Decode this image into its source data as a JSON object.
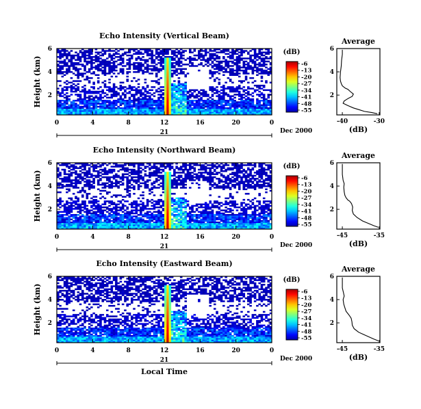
{
  "chart_data": [
    {
      "type": "heatmap",
      "title": "Echo Intensity (Vertical Beam)",
      "ylabel": "Height (km)",
      "x_ticks": [
        "0",
        "4",
        "8",
        "12",
        "16",
        "20",
        "0"
      ],
      "y_ticks": [
        "6",
        "4",
        "2"
      ],
      "date_day": "21",
      "date_suffix": "Dec 2000",
      "colorbar": {
        "unit": "(dB)",
        "labels": [
          "-6",
          "-13",
          "-20",
          "-27",
          "-34",
          "-41",
          "-48",
          "-55"
        ]
      },
      "profile": {
        "title": "Average",
        "xlabel": "(dB)",
        "x_ticks": [
          "-40",
          "-30"
        ],
        "y_ticks": [
          "6",
          "4",
          "2"
        ],
        "points": [
          [
            -40,
            5.9
          ],
          [
            -40,
            5.5
          ],
          [
            -40.2,
            5.0
          ],
          [
            -40.3,
            4.5
          ],
          [
            -40.5,
            4.0
          ],
          [
            -40.6,
            3.5
          ],
          [
            -40.5,
            3.2
          ],
          [
            -40.3,
            3.0
          ],
          [
            -40.0,
            2.8
          ],
          [
            -39.2,
            2.6
          ],
          [
            -38.5,
            2.5
          ],
          [
            -37.8,
            2.3
          ],
          [
            -37.0,
            2.1
          ],
          [
            -37.3,
            1.9
          ],
          [
            -38.5,
            1.7
          ],
          [
            -39.5,
            1.5
          ],
          [
            -39.8,
            1.3
          ],
          [
            -38.5,
            1.1
          ],
          [
            -37.0,
            0.9
          ],
          [
            -35.5,
            0.75
          ],
          [
            -34.0,
            0.6
          ],
          [
            -32.0,
            0.5
          ],
          [
            -30.5,
            0.4
          ]
        ]
      }
    },
    {
      "type": "heatmap",
      "title": "Echo Intensity (Northward Beam)",
      "ylabel": "Height (km)",
      "x_ticks": [
        "0",
        "4",
        "8",
        "12",
        "16",
        "20",
        "0"
      ],
      "y_ticks": [
        "6",
        "4",
        "2"
      ],
      "date_day": "21",
      "date_suffix": "Dec 2000",
      "colorbar": {
        "unit": "(dB)",
        "labels": [
          "-6",
          "-13",
          "-20",
          "-27",
          "-34",
          "-41",
          "-48",
          "-55"
        ]
      },
      "profile": {
        "title": "Average",
        "xlabel": "(dB)",
        "x_ticks": [
          "-45",
          "-35"
        ],
        "y_ticks": [
          "6",
          "4",
          "2"
        ],
        "points": [
          [
            -45,
            5.9
          ],
          [
            -45,
            5.5
          ],
          [
            -45,
            5.0
          ],
          [
            -44.8,
            4.5
          ],
          [
            -44.5,
            4.2
          ],
          [
            -44.6,
            3.9
          ],
          [
            -44.5,
            3.5
          ],
          [
            -44.3,
            3.2
          ],
          [
            -44.0,
            3.0
          ],
          [
            -43.5,
            2.8
          ],
          [
            -43.0,
            2.7
          ],
          [
            -42.5,
            2.5
          ],
          [
            -42.2,
            2.2
          ],
          [
            -42.3,
            1.9
          ],
          [
            -42.0,
            1.6
          ],
          [
            -41.0,
            1.3
          ],
          [
            -39.5,
            1.0
          ],
          [
            -38.0,
            0.8
          ],
          [
            -36.5,
            0.6
          ],
          [
            -35.2,
            0.45
          ]
        ]
      }
    },
    {
      "type": "heatmap",
      "title": "Echo Intensity (Eastward Beam)",
      "ylabel": "Height (km)",
      "xlabel": "Local Time",
      "x_ticks": [
        "0",
        "4",
        "8",
        "12",
        "16",
        "20",
        "0"
      ],
      "y_ticks": [
        "6",
        "4",
        "2"
      ],
      "date_day": "21",
      "date_suffix": "Dec 2000",
      "colorbar": {
        "unit": "(dB)",
        "labels": [
          "-6",
          "-13",
          "-20",
          "-27",
          "-34",
          "-41",
          "-48",
          "-55"
        ]
      },
      "profile": {
        "title": "Average",
        "xlabel": "(dB)",
        "x_ticks": [
          "-45",
          "-35"
        ],
        "y_ticks": [
          "6",
          "4",
          "2"
        ],
        "points": [
          [
            -45,
            5.9
          ],
          [
            -45,
            5.5
          ],
          [
            -45,
            5.0
          ],
          [
            -44.7,
            4.6
          ],
          [
            -44.5,
            4.3
          ],
          [
            -44.8,
            4.0
          ],
          [
            -44.6,
            3.6
          ],
          [
            -44.3,
            3.3
          ],
          [
            -44.0,
            3.0
          ],
          [
            -43.5,
            2.8
          ],
          [
            -43.0,
            2.6
          ],
          [
            -42.6,
            2.4
          ],
          [
            -42.4,
            2.1
          ],
          [
            -42.3,
            1.8
          ],
          [
            -41.8,
            1.5
          ],
          [
            -40.6,
            1.2
          ],
          [
            -39.2,
            1.0
          ],
          [
            -37.8,
            0.8
          ],
          [
            -36.4,
            0.6
          ],
          [
            -35.2,
            0.45
          ]
        ]
      }
    }
  ]
}
